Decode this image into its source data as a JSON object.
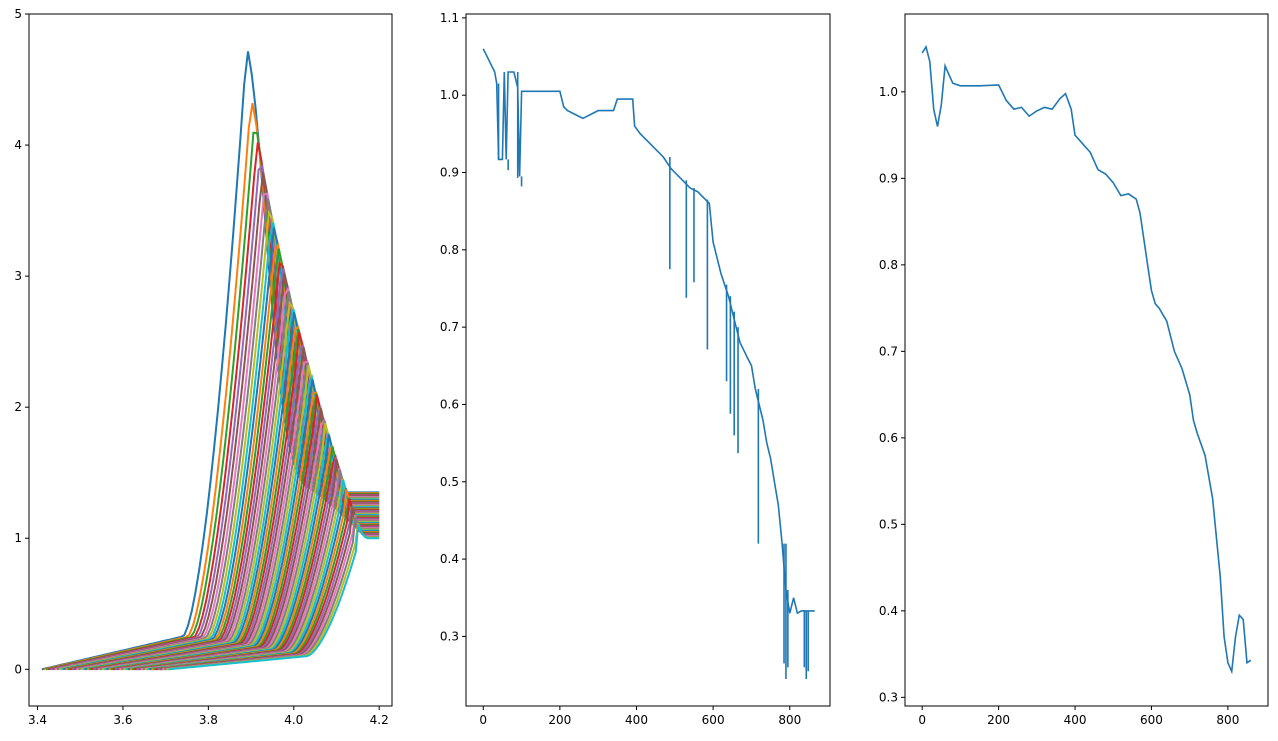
{
  "chart_data": [
    {
      "type": "line",
      "title": "",
      "xlabel": "",
      "ylabel": "",
      "xlim": [
        3.38,
        4.23
      ],
      "ylim": [
        -0.28,
        5.0
      ],
      "xticks": [
        3.4,
        3.6,
        3.8,
        4.0,
        4.2
      ],
      "xtick_labels": [
        "3.4",
        "3.6",
        "3.8",
        "4.0",
        "4.2"
      ],
      "yticks": [
        0,
        1,
        2,
        3,
        4,
        5
      ],
      "ytick_labels": [
        "0",
        "1",
        "2",
        "3",
        "4",
        "5"
      ],
      "grid": false,
      "legend": "none",
      "colors": [
        "#1f77b4",
        "#ff7f0e",
        "#2ca02c",
        "#d62728",
        "#9467bd",
        "#8c564b",
        "#e377c2",
        "#7f7f7f",
        "#bcbd22",
        "#17becf"
      ],
      "description_series": "family of many overlapping curves; each rises from ~0 near x=3.4, peaks between x≈3.85 and 4.15, and ends near y≈1.0–1.35 at x=4.2",
      "series_count": 60,
      "peak_height_range": [
        1.1,
        4.75
      ],
      "peak_x_range": [
        3.89,
        4.15
      ],
      "end_y_range": [
        1.0,
        1.35
      ]
    },
    {
      "type": "line",
      "title": "",
      "xlabel": "",
      "ylabel": "",
      "xlim": [
        -45,
        905
      ],
      "ylim": [
        0.21,
        1.105
      ],
      "xticks": [
        0,
        200,
        400,
        600,
        800
      ],
      "xtick_labels": [
        "0",
        "200",
        "400",
        "600",
        "800"
      ],
      "yticks": [
        0.3,
        0.4,
        0.5,
        0.6,
        0.7,
        0.8,
        0.9,
        1.0,
        1.1
      ],
      "ytick_labels": [
        "0.3",
        "0.4",
        "0.5",
        "0.6",
        "0.7",
        "0.8",
        "0.9",
        "1.0",
        "1.1"
      ],
      "grid": false,
      "legend": "none",
      "color": "#1f77b4",
      "x": [
        0,
        10,
        20,
        30,
        35,
        40,
        45,
        50,
        55,
        60,
        65,
        70,
        80,
        90,
        95,
        100,
        110,
        150,
        200,
        210,
        220,
        240,
        260,
        280,
        300,
        320,
        340,
        350,
        370,
        390,
        395,
        410,
        430,
        450,
        470,
        490,
        500,
        520,
        540,
        560,
        570,
        580,
        590,
        600,
        610,
        620,
        630,
        640,
        650,
        660,
        670,
        680,
        690,
        700,
        710,
        720,
        730,
        740,
        750,
        760,
        770,
        780,
        790,
        800,
        810,
        820,
        830,
        840,
        850,
        865
      ],
      "y": [
        1.06,
        1.05,
        1.04,
        1.03,
        1.015,
        0.917,
        0.917,
        0.917,
        1.03,
        0.917,
        1.03,
        1.03,
        1.03,
        1.01,
        0.895,
        1.005,
        1.005,
        1.005,
        1.005,
        0.985,
        0.98,
        0.975,
        0.97,
        0.975,
        0.98,
        0.98,
        0.98,
        0.995,
        0.995,
        0.995,
        0.96,
        0.95,
        0.94,
        0.93,
        0.92,
        0.905,
        0.9,
        0.89,
        0.88,
        0.875,
        0.87,
        0.865,
        0.86,
        0.81,
        0.79,
        0.77,
        0.755,
        0.74,
        0.72,
        0.7,
        0.68,
        0.67,
        0.66,
        0.65,
        0.62,
        0.6,
        0.58,
        0.55,
        0.53,
        0.5,
        0.47,
        0.42,
        0.36,
        0.33,
        0.35,
        0.33,
        0.333,
        0.333,
        0.333,
        0.333
      ],
      "spikes": [
        {
          "x": 40,
          "y": 0.917
        },
        {
          "x": 65,
          "y": 0.903
        },
        {
          "x": 90,
          "y": 0.893
        },
        {
          "x": 100,
          "y": 0.882
        },
        {
          "x": 487,
          "y": 0.775
        },
        {
          "x": 530,
          "y": 0.738
        },
        {
          "x": 550,
          "y": 0.758
        },
        {
          "x": 585,
          "y": 0.671
        },
        {
          "x": 635,
          "y": 0.63
        },
        {
          "x": 645,
          "y": 0.588
        },
        {
          "x": 655,
          "y": 0.56
        },
        {
          "x": 665,
          "y": 0.537
        },
        {
          "x": 718,
          "y": 0.42
        },
        {
          "x": 785,
          "y": 0.265
        },
        {
          "x": 790,
          "y": 0.245
        },
        {
          "x": 795,
          "y": 0.26
        },
        {
          "x": 838,
          "y": 0.26
        },
        {
          "x": 843,
          "y": 0.245
        },
        {
          "x": 848,
          "y": 0.255
        }
      ]
    },
    {
      "type": "line",
      "title": "",
      "xlabel": "",
      "ylabel": "",
      "xlim": [
        -45,
        905
      ],
      "ylim": [
        0.29,
        1.09
      ],
      "xticks": [
        0,
        200,
        400,
        600,
        800
      ],
      "xtick_labels": [
        "0",
        "200",
        "400",
        "600",
        "800"
      ],
      "yticks": [
        0.3,
        0.4,
        0.5,
        0.6,
        0.7,
        0.8,
        0.9,
        1.0
      ],
      "ytick_labels": [
        "0.3",
        "0.4",
        "0.5",
        "0.6",
        "0.7",
        "0.8",
        "0.9",
        "1.0"
      ],
      "grid": false,
      "legend": "none",
      "color": "#1f77b4",
      "x": [
        0,
        10,
        20,
        30,
        40,
        50,
        60,
        70,
        80,
        100,
        150,
        200,
        220,
        240,
        260,
        280,
        300,
        320,
        340,
        360,
        375,
        390,
        400,
        420,
        440,
        460,
        480,
        500,
        520,
        540,
        560,
        570,
        580,
        590,
        600,
        610,
        620,
        640,
        660,
        680,
        700,
        710,
        720,
        740,
        760,
        780,
        790,
        800,
        810,
        820,
        830,
        840,
        850,
        860
      ],
      "y": [
        1.045,
        1.052,
        1.035,
        0.98,
        0.96,
        0.985,
        1.03,
        1.02,
        1.01,
        1.007,
        1.007,
        1.008,
        0.99,
        0.98,
        0.982,
        0.972,
        0.978,
        0.982,
        0.98,
        0.992,
        0.998,
        0.98,
        0.95,
        0.94,
        0.93,
        0.91,
        0.905,
        0.895,
        0.88,
        0.882,
        0.876,
        0.86,
        0.83,
        0.8,
        0.77,
        0.755,
        0.75,
        0.735,
        0.7,
        0.68,
        0.65,
        0.62,
        0.605,
        0.58,
        0.53,
        0.44,
        0.37,
        0.34,
        0.33,
        0.37,
        0.395,
        0.39,
        0.34,
        0.343
      ]
    }
  ]
}
